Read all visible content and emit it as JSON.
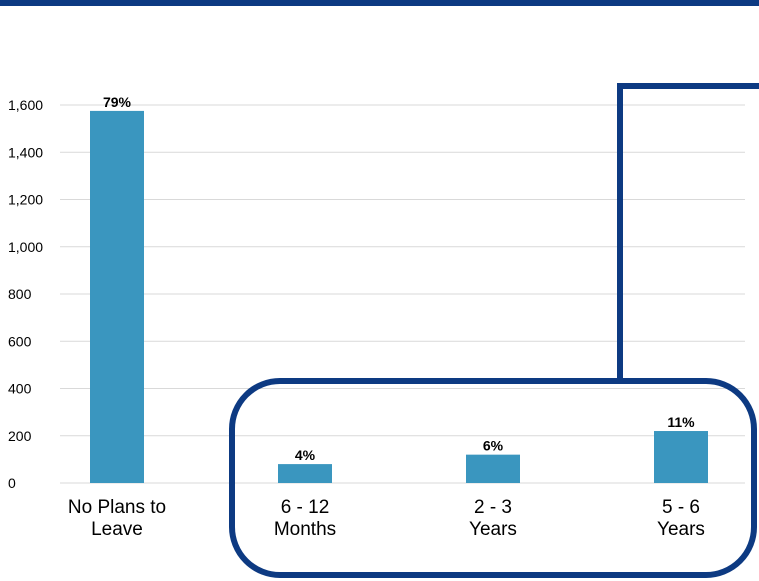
{
  "colors": {
    "bar": "#3a96bf",
    "accent": "#0d3a82",
    "grid": "#d9d9d9"
  },
  "chart_data": {
    "type": "bar",
    "categories": [
      [
        "No Plans to",
        "Leave"
      ],
      [
        "6 - 12",
        "Months"
      ],
      [
        "2 - 3",
        "Years"
      ],
      [
        "5 - 6",
        "Years"
      ]
    ],
    "values": [
      1575,
      80,
      120,
      220
    ],
    "data_labels": [
      "79%",
      "4%",
      "6%",
      "11%"
    ],
    "yticks": [
      "0",
      "200",
      "400",
      "600",
      "800",
      "1,000",
      "1,200",
      "1,400",
      "1,600"
    ],
    "ylim": [
      0,
      1600
    ],
    "grid": true
  }
}
